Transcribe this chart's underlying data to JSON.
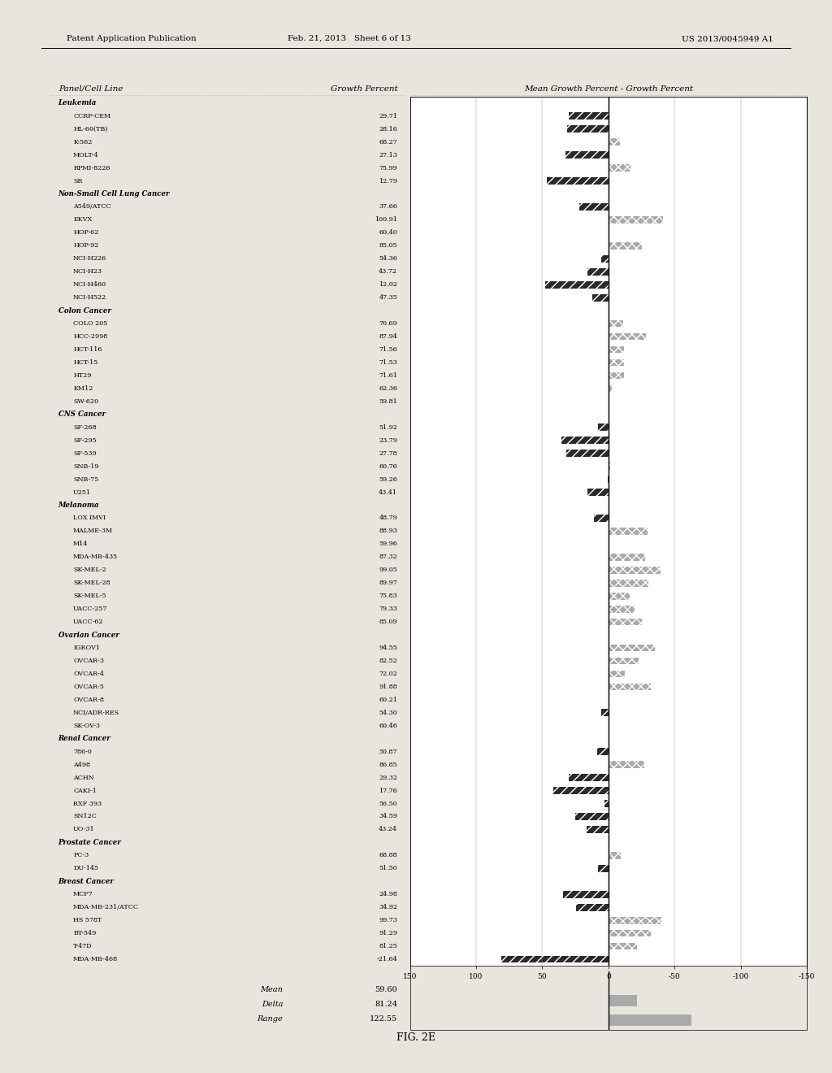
{
  "title_col1": "Panel/Cell Line",
  "title_col2": "Growth Percent",
  "title_col3": "Mean Growth Percent - Growth Percent",
  "fig_label": "FIG. 2E",
  "header_top_left": "Patent Application Publication",
  "header_top_mid": "Feb. 21, 2013   Sheet 6 of 13",
  "header_top_right": "US 2013/0045949 A1",
  "mean_value": 59.6,
  "delta_value": 81.24,
  "range_value": 122.55,
  "x_ticks": [
    150,
    100,
    50,
    0,
    -50,
    -100,
    -150
  ],
  "x_tick_labels": [
    "150",
    "100",
    "50",
    "0",
    "-50",
    "-100",
    "-150"
  ],
  "categories": [
    {
      "group": "Leukemia",
      "is_header": true,
      "name": "Leukemia",
      "value": null
    },
    {
      "group": "Leukemia",
      "is_header": false,
      "name": "CCRF-CEM",
      "value": 29.71
    },
    {
      "group": "Leukemia",
      "is_header": false,
      "name": "HL-60(TB)",
      "value": 28.16
    },
    {
      "group": "Leukemia",
      "is_header": false,
      "name": "K-562",
      "value": 68.27
    },
    {
      "group": "Leukemia",
      "is_header": false,
      "name": "MOLT-4",
      "value": 27.13
    },
    {
      "group": "Leukemia",
      "is_header": false,
      "name": "RPMI-8226",
      "value": 75.99
    },
    {
      "group": "Leukemia",
      "is_header": false,
      "name": "SR",
      "value": 12.79
    },
    {
      "group": "Non-Small Cell Lung Cancer",
      "is_header": true,
      "name": "Non-Small Cell Lung Cancer",
      "value": null
    },
    {
      "group": "Non-Small Cell Lung Cancer",
      "is_header": false,
      "name": "A549/ATCC",
      "value": 37.66
    },
    {
      "group": "Non-Small Cell Lung Cancer",
      "is_header": false,
      "name": "EKVX",
      "value": 100.91
    },
    {
      "group": "Non-Small Cell Lung Cancer",
      "is_header": false,
      "name": "HOP-62",
      "value": 60.4
    },
    {
      "group": "Non-Small Cell Lung Cancer",
      "is_header": false,
      "name": "HOP-92",
      "value": 85.05
    },
    {
      "group": "Non-Small Cell Lung Cancer",
      "is_header": false,
      "name": "NCI-H226",
      "value": 54.36
    },
    {
      "group": "Non-Small Cell Lung Cancer",
      "is_header": false,
      "name": "NCI-H23",
      "value": 43.72
    },
    {
      "group": "Non-Small Cell Lung Cancer",
      "is_header": false,
      "name": "NCI-H460",
      "value": 12.02
    },
    {
      "group": "Non-Small Cell Lung Cancer",
      "is_header": false,
      "name": "NCI-H522",
      "value": 47.35
    },
    {
      "group": "Colon Cancer",
      "is_header": true,
      "name": "Colon Cancer",
      "value": null
    },
    {
      "group": "Colon Cancer",
      "is_header": false,
      "name": "COLO 205",
      "value": 70.69
    },
    {
      "group": "Colon Cancer",
      "is_header": false,
      "name": "HCC-2998",
      "value": 87.94
    },
    {
      "group": "Colon Cancer",
      "is_header": false,
      "name": "HCT-116",
      "value": 71.56
    },
    {
      "group": "Colon Cancer",
      "is_header": false,
      "name": "HCT-15",
      "value": 71.53
    },
    {
      "group": "Colon Cancer",
      "is_header": false,
      "name": "HT29",
      "value": 71.61
    },
    {
      "group": "Colon Cancer",
      "is_header": false,
      "name": "KM12",
      "value": 62.36
    },
    {
      "group": "Colon Cancer",
      "is_header": false,
      "name": "SW-620",
      "value": 59.81
    },
    {
      "group": "CNS Cancer",
      "is_header": true,
      "name": "CNS Cancer",
      "value": null
    },
    {
      "group": "CNS Cancer",
      "is_header": false,
      "name": "SF-268",
      "value": 51.92
    },
    {
      "group": "CNS Cancer",
      "is_header": false,
      "name": "SF-295",
      "value": 23.79
    },
    {
      "group": "CNS Cancer",
      "is_header": false,
      "name": "SF-539",
      "value": 27.78
    },
    {
      "group": "CNS Cancer",
      "is_header": false,
      "name": "SNB-19",
      "value": 60.76
    },
    {
      "group": "CNS Cancer",
      "is_header": false,
      "name": "SNB-75",
      "value": 59.26
    },
    {
      "group": "CNS Cancer",
      "is_header": false,
      "name": "U251",
      "value": 43.41
    },
    {
      "group": "Melanoma",
      "is_header": true,
      "name": "Melanoma",
      "value": null
    },
    {
      "group": "Melanoma",
      "is_header": false,
      "name": "LOX IMVI",
      "value": 48.79
    },
    {
      "group": "Melanoma",
      "is_header": false,
      "name": "MALME-3M",
      "value": 88.93
    },
    {
      "group": "Melanoma",
      "is_header": false,
      "name": "M14",
      "value": 59.96
    },
    {
      "group": "Melanoma",
      "is_header": false,
      "name": "MDA-MB-435",
      "value": 87.32
    },
    {
      "group": "Melanoma",
      "is_header": false,
      "name": "SK-MEL-2",
      "value": 99.05
    },
    {
      "group": "Melanoma",
      "is_header": false,
      "name": "SK-MEL-28",
      "value": 89.97
    },
    {
      "group": "Melanoma",
      "is_header": false,
      "name": "SK-MEL-5",
      "value": 75.83
    },
    {
      "group": "Melanoma",
      "is_header": false,
      "name": "UACC-257",
      "value": 79.33
    },
    {
      "group": "Melanoma",
      "is_header": false,
      "name": "UACC-62",
      "value": 85.09
    },
    {
      "group": "Ovarian Cancer",
      "is_header": true,
      "name": "Ovarian Cancer",
      "value": null
    },
    {
      "group": "Ovarian Cancer",
      "is_header": false,
      "name": "IGROV1",
      "value": 94.55
    },
    {
      "group": "Ovarian Cancer",
      "is_header": false,
      "name": "OVCAR-3",
      "value": 82.52
    },
    {
      "group": "Ovarian Cancer",
      "is_header": false,
      "name": "OVCAR-4",
      "value": 72.02
    },
    {
      "group": "Ovarian Cancer",
      "is_header": false,
      "name": "OVCAR-5",
      "value": 91.88
    },
    {
      "group": "Ovarian Cancer",
      "is_header": false,
      "name": "OVCAR-8",
      "value": 60.21
    },
    {
      "group": "Ovarian Cancer",
      "is_header": false,
      "name": "NCI/ADR-RES",
      "value": 54.3
    },
    {
      "group": "Ovarian Cancer",
      "is_header": false,
      "name": "SK-OV-3",
      "value": 60.46
    },
    {
      "group": "Renal Cancer",
      "is_header": true,
      "name": "Renal Cancer",
      "value": null
    },
    {
      "group": "Renal Cancer",
      "is_header": false,
      "name": "786-0",
      "value": 50.87
    },
    {
      "group": "Renal Cancer",
      "is_header": false,
      "name": "A498",
      "value": 86.85
    },
    {
      "group": "Renal Cancer",
      "is_header": false,
      "name": "ACHN",
      "value": 29.32
    },
    {
      "group": "Renal Cancer",
      "is_header": false,
      "name": "CAKI-1",
      "value": 17.76
    },
    {
      "group": "Renal Cancer",
      "is_header": false,
      "name": "RXF 393",
      "value": 56.5
    },
    {
      "group": "Renal Cancer",
      "is_header": false,
      "name": "SN12C",
      "value": 34.59
    },
    {
      "group": "Renal Cancer",
      "is_header": false,
      "name": "UO-31",
      "value": 43.24
    },
    {
      "group": "Prostate Cancer",
      "is_header": true,
      "name": "Prostate Cancer",
      "value": null
    },
    {
      "group": "Prostate Cancer",
      "is_header": false,
      "name": "PC-3",
      "value": 68.88
    },
    {
      "group": "Prostate Cancer",
      "is_header": false,
      "name": "DU-145",
      "value": 51.5
    },
    {
      "group": "Breast Cancer",
      "is_header": true,
      "name": "Breast Cancer",
      "value": null
    },
    {
      "group": "Breast Cancer",
      "is_header": false,
      "name": "MCF7",
      "value": 24.98
    },
    {
      "group": "Breast Cancer",
      "is_header": false,
      "name": "MDA-MB-231/ATCC",
      "value": 34.92
    },
    {
      "group": "Breast Cancer",
      "is_header": false,
      "name": "HS 578T",
      "value": 99.73
    },
    {
      "group": "Breast Cancer",
      "is_header": false,
      "name": "BT-549",
      "value": 91.29
    },
    {
      "group": "Breast Cancer",
      "is_header": false,
      "name": "T-47D",
      "value": 81.25
    },
    {
      "group": "Breast Cancer",
      "is_header": false,
      "name": "MDA-MB-468",
      "value": -21.64
    }
  ],
  "bg_color": "#ffffff",
  "bar_color_dark": "#2a2a2a",
  "bar_color_light": "#aaaaaa",
  "hatch_dark": "///",
  "hatch_light": "xxx"
}
